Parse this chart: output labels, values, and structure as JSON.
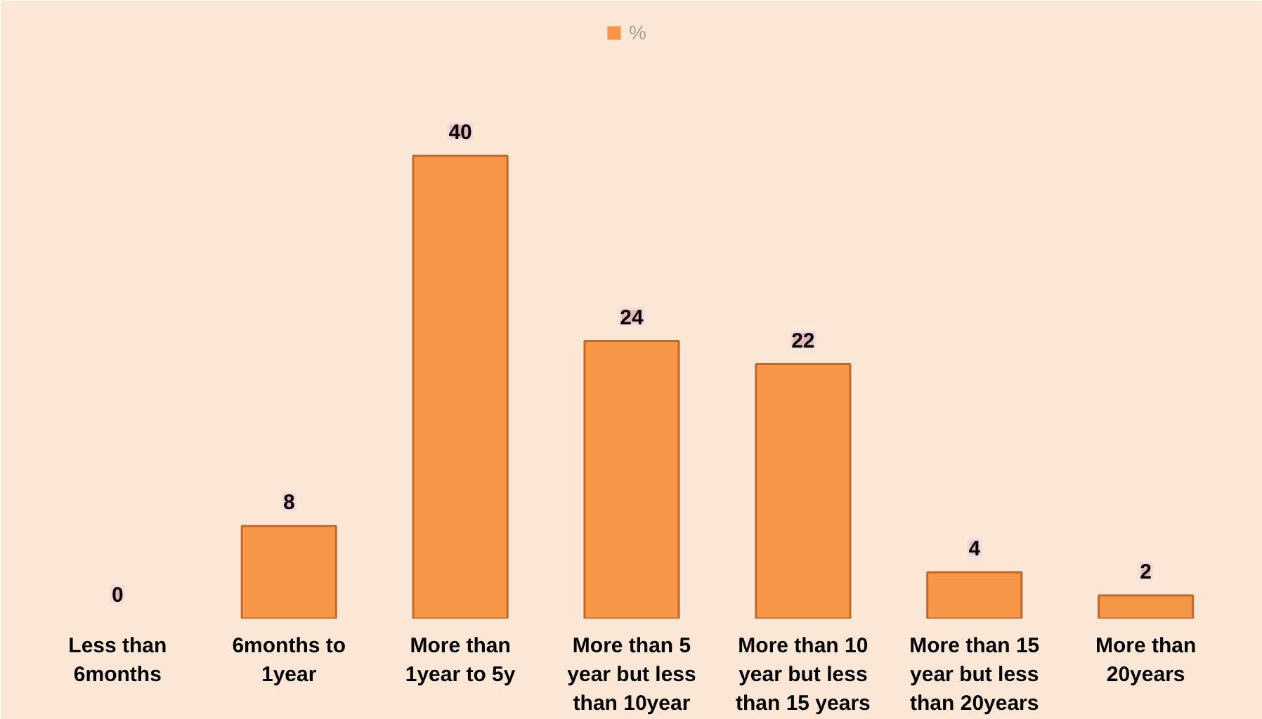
{
  "chart_data": {
    "type": "bar",
    "categories": [
      "Less than 6months",
      "6months to 1year",
      "More than 1year to 5y",
      "More than 5 year but less than 10year",
      "More than 10 year but less than 15 years",
      "More than 15 year but less than 20years",
      "More than 20years"
    ],
    "series": [
      {
        "name": "%",
        "color": "#f79646",
        "values": [
          0,
          8,
          40,
          24,
          22,
          4,
          2
        ]
      }
    ],
    "data_labels": true,
    "legend": "top",
    "grid": false
  }
}
